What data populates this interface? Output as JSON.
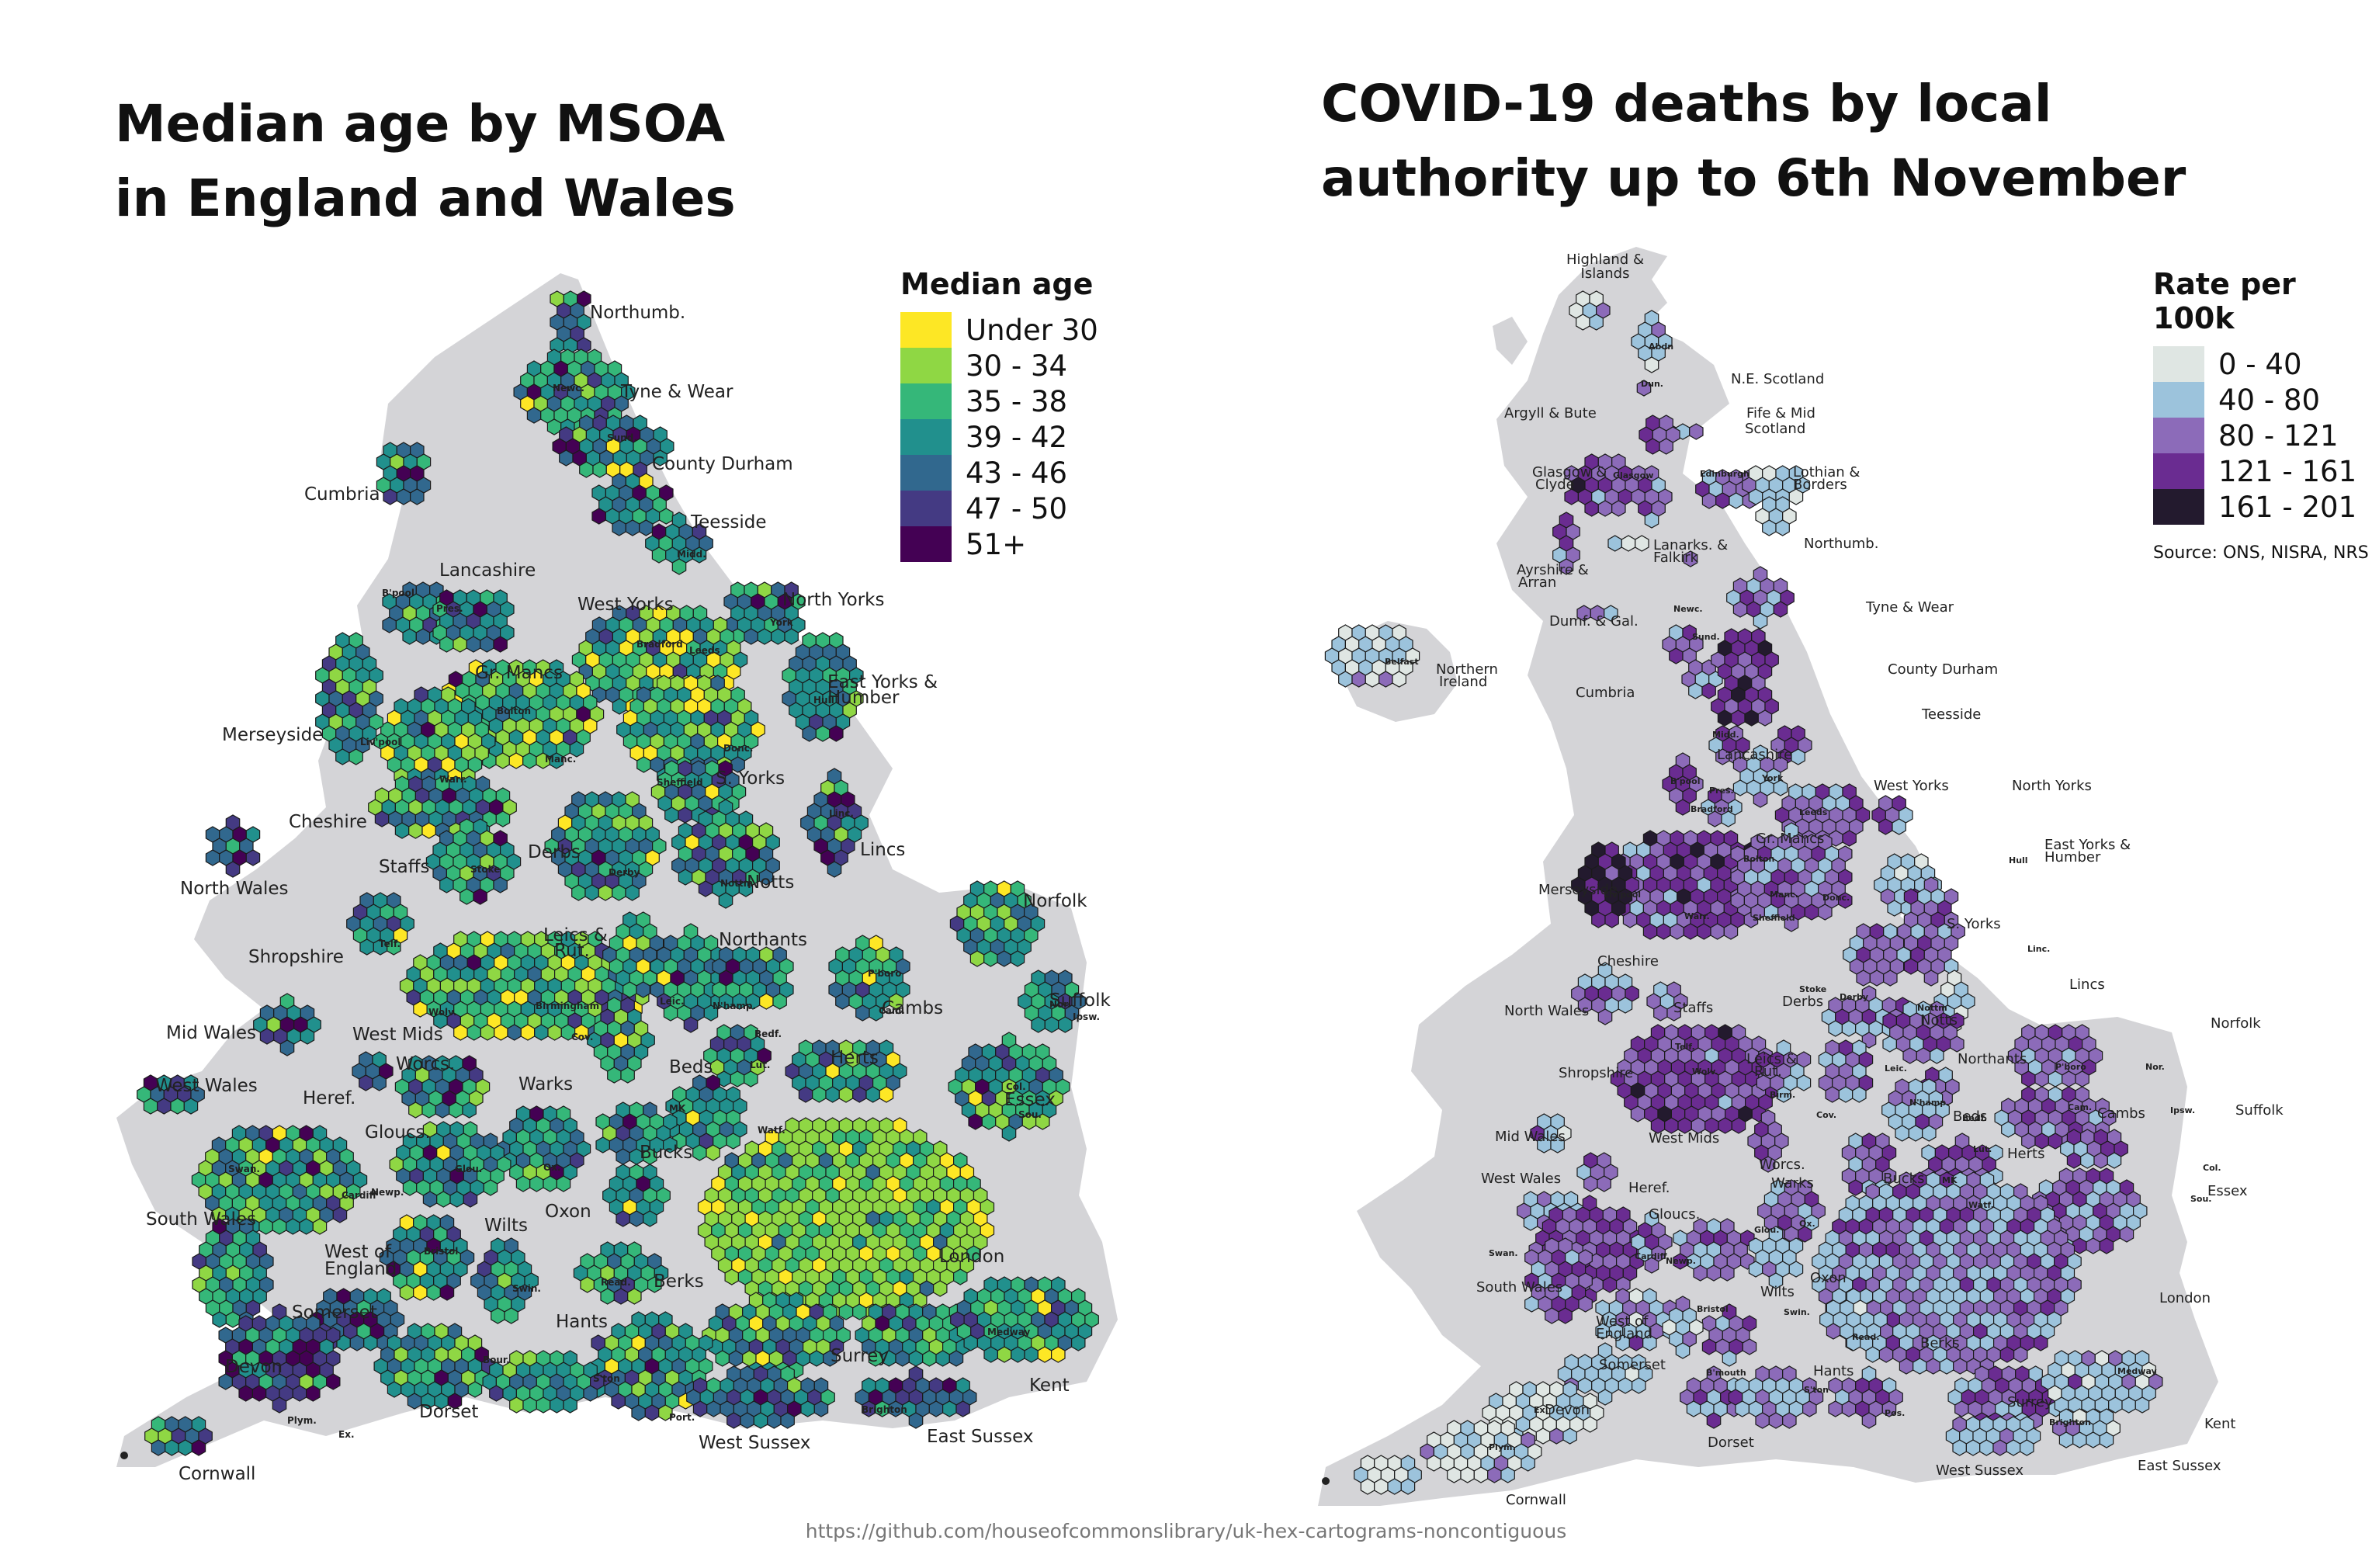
{
  "left": {
    "title_line1": "Median age by MSOA",
    "title_line2": "in England and Wales",
    "legend": {
      "title": "Median age",
      "items": [
        {
          "label": "Under 30",
          "color": "#fde725"
        },
        {
          "label": "30 - 34",
          "color": "#8fd744"
        },
        {
          "label": "35 - 38",
          "color": "#35b779"
        },
        {
          "label": "39 - 42",
          "color": "#21908d"
        },
        {
          "label": "43 - 46",
          "color": "#31688e"
        },
        {
          "label": "47 - 50",
          "color": "#443a83"
        },
        {
          "label": "51+",
          "color": "#440154"
        }
      ]
    },
    "labels": [
      "Northumb.",
      "Tyne & Wear",
      "County Durham",
      "Teesside",
      "Cumbria",
      "Lancashire",
      "West Yorks",
      "North Yorks",
      "Gr. Mancs",
      "East Yorks &",
      "Humber",
      "Merseyside",
      "S. Yorks",
      "Cheshire",
      "Lincs",
      "Staffs",
      "Derbs",
      "Notts",
      "North Wales",
      "Norfolk",
      "Leics &",
      "Rut.",
      "Northants",
      "Shropshire",
      "Suffolk",
      "Cambs",
      "Mid Wales",
      "West Mids",
      "Herts",
      "Beds",
      "Worcs.",
      "West Wales",
      "Heref.",
      "Warks",
      "Essex",
      "Bucks",
      "Gloucs.",
      "Oxon",
      "South Wales",
      "Wilts",
      "London",
      "West of",
      "England",
      "Berks",
      "Somerset",
      "Hants",
      "Surrey",
      "Devon",
      "Dorset",
      "Kent",
      "West Sussex",
      "East Sussex",
      "Cornwall"
    ],
    "city_labels": [
      "Newc.",
      "Sund.",
      "Midd.",
      "B'pool",
      "Pres.",
      "Bradford",
      "Leeds",
      "York",
      "Hull",
      "Bolton",
      "Manc.",
      "Liv'pool",
      "Warr.",
      "Donc.",
      "Sheffield",
      "Linc.",
      "Stoke",
      "Derby",
      "Nottm",
      "Telf.",
      "Wolv.",
      "Birmingham",
      "Cov.",
      "Leic.",
      "N'hamp.",
      "P'boro",
      "Cam.",
      "Nor.",
      "Ipsw.",
      "Bedf.",
      "Lut.",
      "MK",
      "Col.",
      "Sou.",
      "Watf.",
      "Ox.",
      "Glou.",
      "Swan.",
      "Cardiff",
      "Newp.",
      "Bristol",
      "Swin.",
      "Read.",
      "Bour.",
      "S'ton",
      "Port.",
      "Medway",
      "Brighton",
      "Plym.",
      "Ex."
    ]
  },
  "right": {
    "title_line1": "COVID-19 deaths by local",
    "title_line2": "authority up to 6th November",
    "legend": {
      "title": "Rate per 100k",
      "items": [
        {
          "label": "0 - 40",
          "color": "#dfe6e3"
        },
        {
          "label": "40 - 80",
          "color": "#9cc3dc"
        },
        {
          "label": "80 - 121",
          "color": "#8c6bb9"
        },
        {
          "label": "121 - 161",
          "color": "#6a2c91"
        },
        {
          "label": "161 - 201",
          "color": "#231a2e"
        }
      ],
      "source": "Source: ONS, NISRA, NRS"
    },
    "labels": [
      "Highland &",
      "Islands",
      "N.E. Scotland",
      "Argyll & Bute",
      "Fife & Mid",
      "Scotland",
      "Glasgow &",
      "Clyde",
      "Lothian &",
      "Borders",
      "Lanarks. &",
      "Falkirk",
      "Northumb.",
      "Ayrshire &",
      "Arran",
      "Dumf. & Gal.",
      "Tyne & Wear",
      "Northern",
      "Ireland",
      "County Durham",
      "Cumbria",
      "Teesside",
      "Lancashire",
      "West Yorks",
      "North Yorks",
      "Gr. Mancs",
      "East Yorks &",
      "Humber",
      "Merseyside",
      "S. Yorks",
      "Cheshire",
      "Lincs",
      "Staffs",
      "Derbs",
      "North Wales",
      "Notts",
      "Norfolk",
      "Leics &",
      "Rut.",
      "Northants",
      "Shropshire",
      "Suffolk",
      "Cambs",
      "Beds",
      "Mid Wales",
      "West Mids",
      "Herts",
      "Worcs.",
      "West Wales",
      "Heref.",
      "Warks",
      "Bucks",
      "Essex",
      "Gloucs.",
      "South Wales",
      "Oxon",
      "Wilts",
      "London",
      "West of",
      "England",
      "Somerset",
      "Berks",
      "Hants",
      "Surrey",
      "Devon",
      "Kent",
      "Dorset",
      "West Sussex",
      "East Sussex",
      "Cornwall"
    ],
    "city_labels": [
      "Abdn",
      "Dun.",
      "Glasgow",
      "Edinburgh",
      "Belfast",
      "Newc.",
      "Sund.",
      "Midd.",
      "B'pool",
      "Pres.",
      "York",
      "Bradford",
      "Leeds",
      "Hull",
      "Bolton",
      "Liv'pool",
      "Manc.",
      "Warr.",
      "Donc.",
      "Sheffield",
      "Linc.",
      "Stoke",
      "Derby",
      "Nottm",
      "Telf.",
      "Wolv.",
      "Birm.",
      "Cov.",
      "Leic.",
      "N'hamp.",
      "P'boro",
      "Cam.",
      "Nor.",
      "Ipsw.",
      "Bedf.",
      "Lut.",
      "MK",
      "Col.",
      "Sou.",
      "Watf.",
      "Ox.",
      "Glou.",
      "Swan.",
      "Cardiff",
      "Newp.",
      "Bristol",
      "Swin.",
      "Read.",
      "B'mouth",
      "S'ton",
      "Pos.",
      "Medway",
      "Brighton",
      "Plym.",
      "Ex."
    ]
  },
  "footer": {
    "url": "https://github.com/houseofcommonslibrary/uk-hex-cartograms-noncontiguous"
  }
}
